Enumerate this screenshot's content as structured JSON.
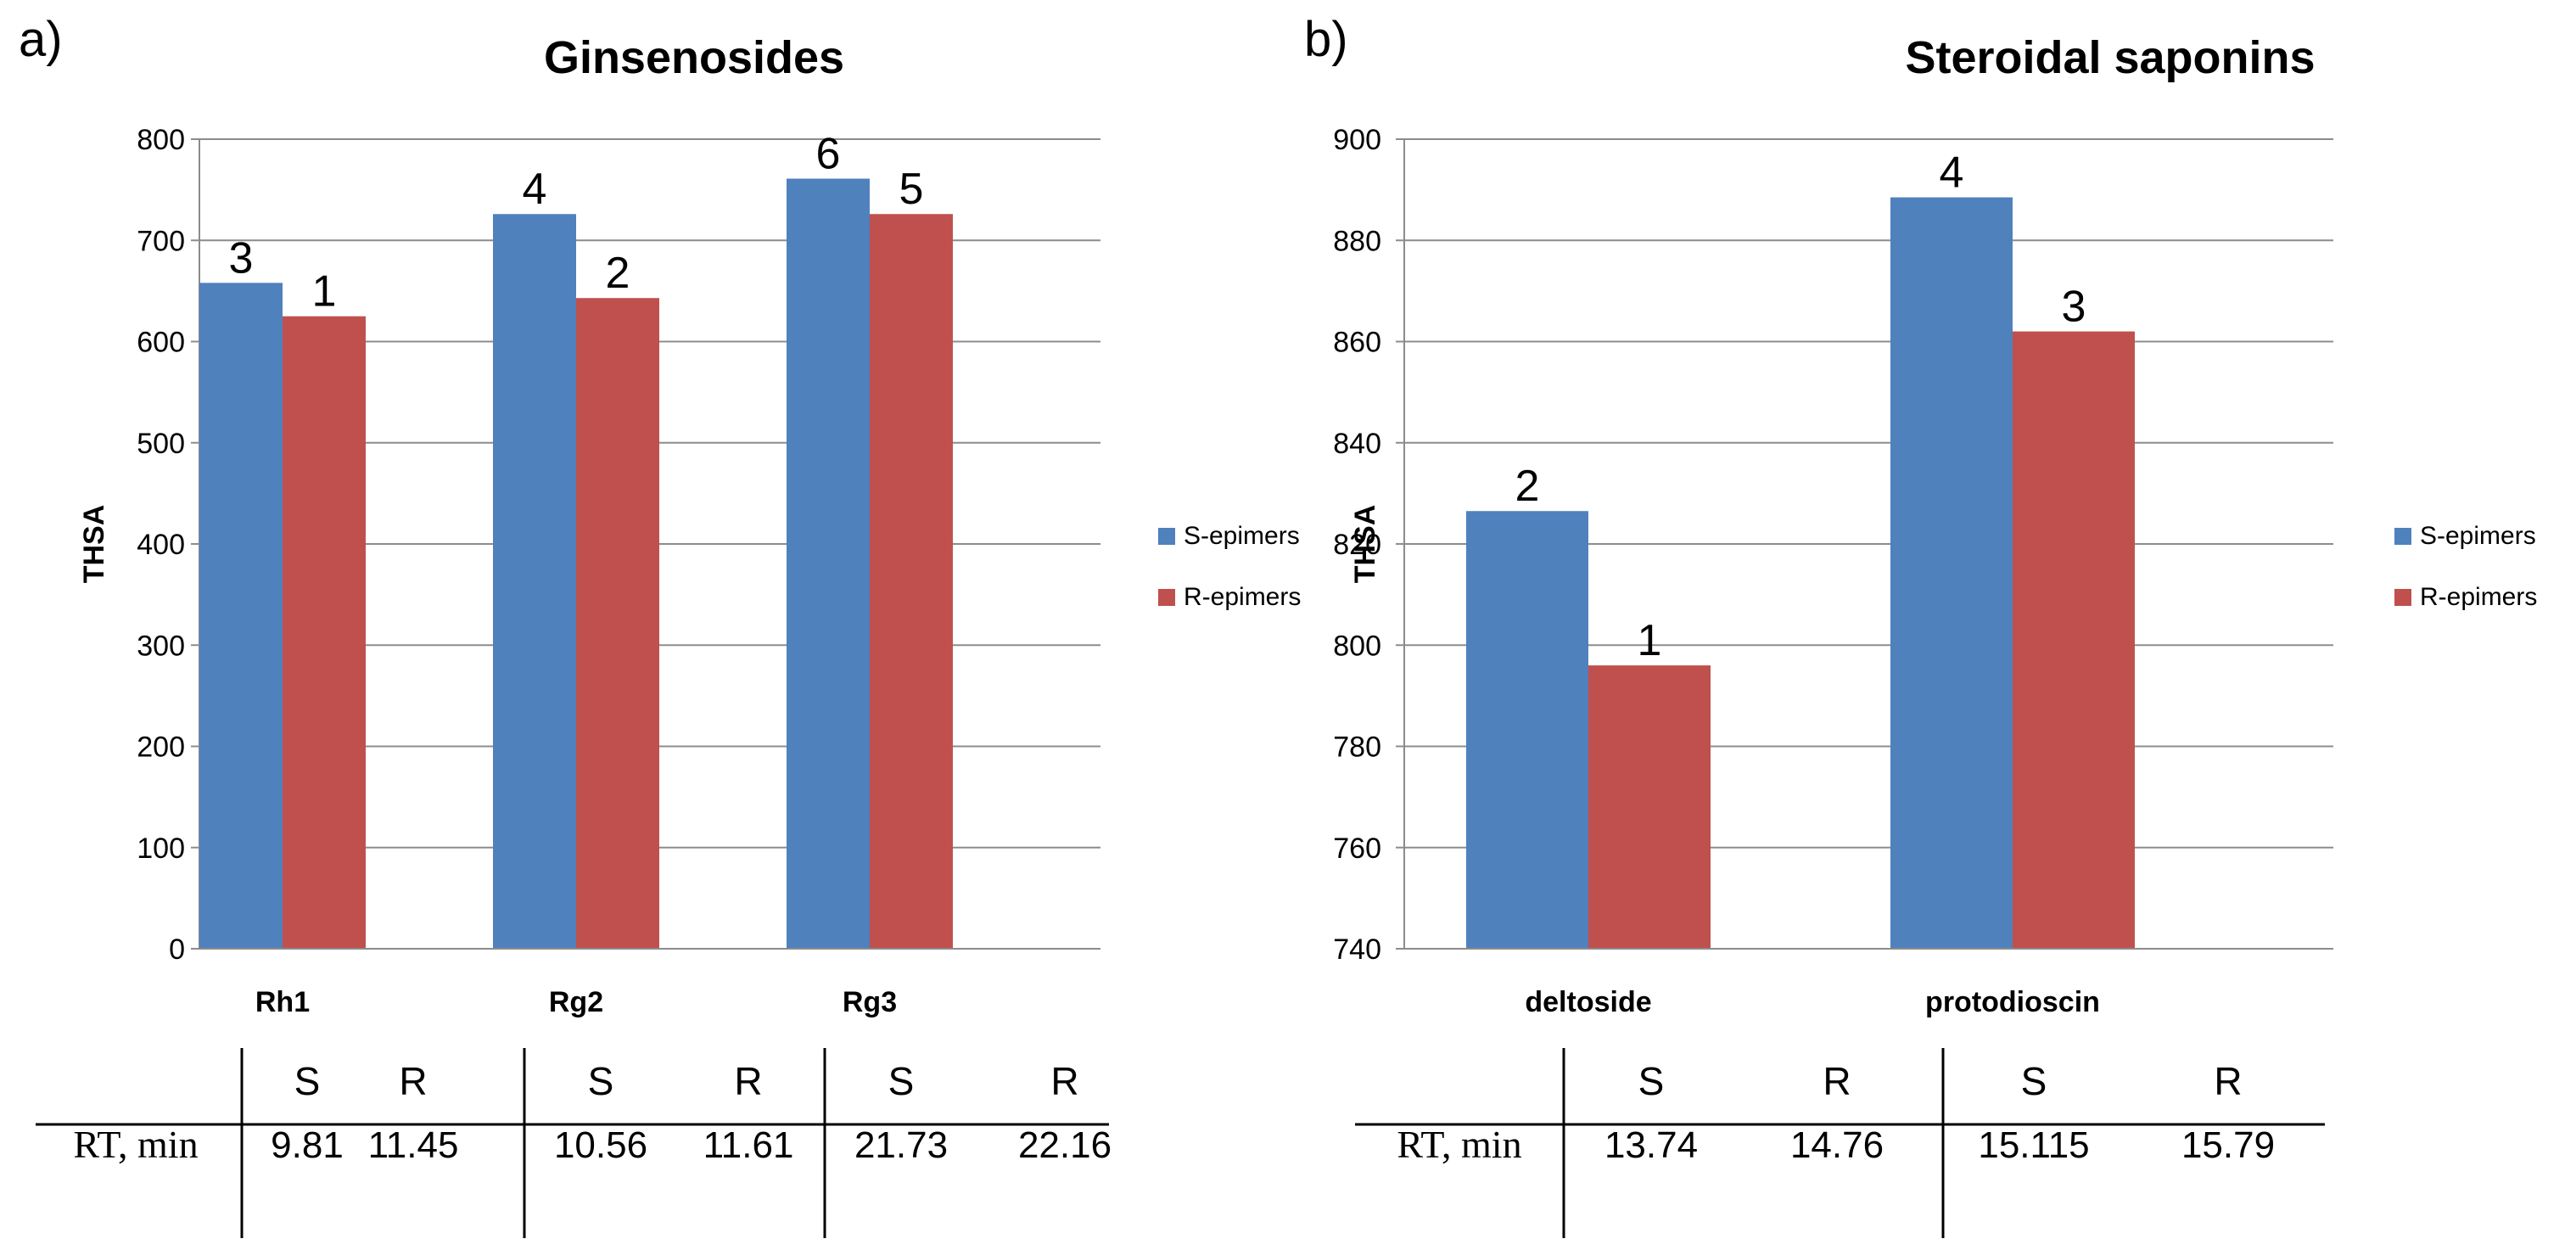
{
  "chart_data": [
    {
      "panel": "a)",
      "type": "bar",
      "title": "Ginsenosides",
      "xlabel": "",
      "ylabel": "THSA",
      "ylim": [
        0,
        800
      ],
      "yticks": [
        0,
        100,
        200,
        300,
        400,
        500,
        600,
        700,
        800
      ],
      "grid": true,
      "categories": [
        "Rh1",
        "Rg2",
        "Rg3"
      ],
      "series": [
        {
          "name": "S-epimers",
          "color": "#4F81BD",
          "values": [
            658,
            726,
            761
          ],
          "labels": [
            "3",
            "4",
            "6"
          ]
        },
        {
          "name": "R-epimers",
          "color": "#C0504D",
          "values": [
            625,
            643,
            726
          ],
          "labels": [
            "1",
            "2",
            "5"
          ]
        }
      ],
      "legend": "right",
      "rt_table": {
        "row_label": "RT, min",
        "header": [
          "S",
          "R",
          "S",
          "R",
          "S",
          "R"
        ],
        "values": [
          "9.81",
          "11.45",
          "10.56",
          "11.61",
          "21.73",
          "22.16"
        ]
      }
    },
    {
      "panel": "b)",
      "type": "bar",
      "title": "Steroidal saponins",
      "xlabel": "",
      "ylabel": "THSA",
      "ylim": [
        740,
        900
      ],
      "yticks": [
        740,
        760,
        780,
        800,
        820,
        840,
        860,
        880,
        900
      ],
      "grid": true,
      "categories": [
        "deltoside",
        "protodioscin"
      ],
      "series": [
        {
          "name": "S-epimers",
          "color": "#4F81BD",
          "values": [
            826.5,
            888.5
          ],
          "labels": [
            "2",
            "4"
          ]
        },
        {
          "name": "R-epimers",
          "color": "#C0504D",
          "values": [
            796,
            862
          ],
          "labels": [
            "1",
            "3"
          ]
        }
      ],
      "legend": "right",
      "rt_table": {
        "row_label": "RT, min",
        "header": [
          "S",
          "R",
          "S",
          "R"
        ],
        "values": [
          "13.74",
          "14.76",
          "15.115",
          "15.79"
        ]
      }
    }
  ]
}
